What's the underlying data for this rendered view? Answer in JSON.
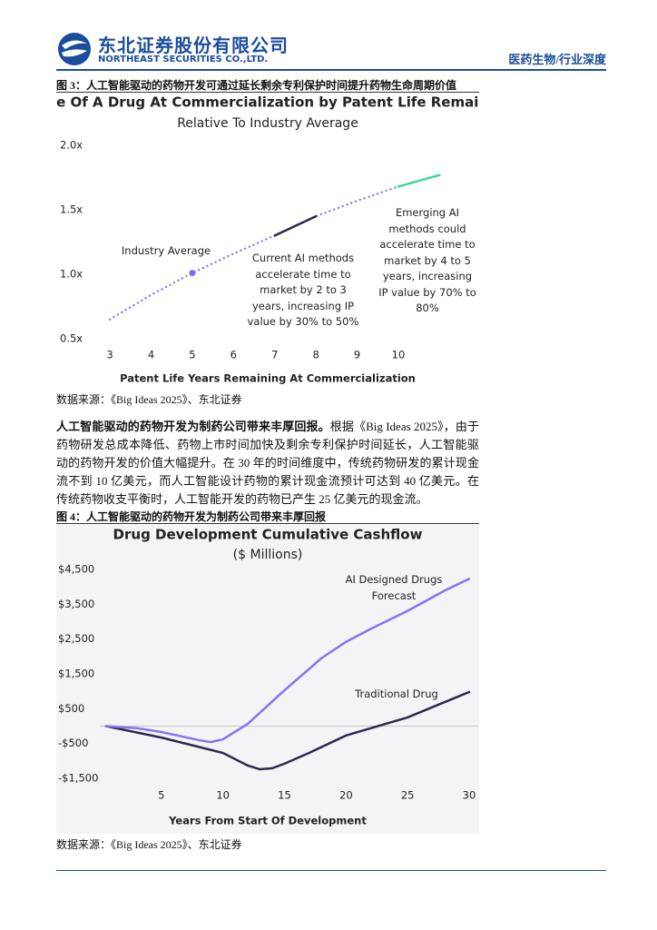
{
  "header": {
    "company": "东北证券股份有限公司",
    "company_en": "NORTHEAST SECURITIES CO.,LTD.",
    "section": "医药生物/行业深度"
  },
  "figures": [
    {
      "caption": "图 3：人工智能驱动的药物开发可通过延长剩余专利保护时间提升药物生命周期价值",
      "source": "数据来源：《Big Ideas 2025》、东北证券"
    },
    {
      "caption": "图 4：人工智能驱动的药物开发为制药公司带来丰厚回报",
      "source": "数据来源：《Big Ideas 2025》、东北证券"
    }
  ],
  "paragraph": {
    "lead": "人工智能驱动的药物开发为制药公司带来丰厚回报。",
    "text": "根据《Big Ideas 2025》，由于药物研发总成本降低、药物上市时间加快及剩余专利保护时间延长，人工智能驱动的药物开发的价值大幅提升。在 30 年的时间维度中，传统药物研发的累计现金流不到 10 亿美元，而人工智能设计药物的累计现金流预计可达到 40 亿美元。在传统药物收支平衡时，人工智能开发的药物已产生 25 亿美元的现金流。"
  },
  "chart_data": [
    {
      "type": "line",
      "title": "Value Of A Drug At Commercialization by Patent Life Remaining",
      "subtitle": "Relative To Industry Average",
      "x_label": "Patent Life Years Remaining At Commercialization",
      "xlim": [
        2.8,
        11.2
      ],
      "xticks": [
        3,
        4,
        5,
        6,
        7,
        8,
        9,
        10
      ],
      "ylim": [
        0.5,
        2.0
      ],
      "yticks": [
        {
          "value": 0.5,
          "label": "0.5x"
        },
        {
          "value": 1.0,
          "label": "1.0x"
        },
        {
          "value": 1.5,
          "label": "1.5x"
        },
        {
          "value": 2.0,
          "label": "2.0x"
        }
      ],
      "series": [
        {
          "color": "#7b6cf2",
          "dash": "dotted",
          "x": [
            3,
            4,
            5,
            6,
            7,
            8,
            9,
            10
          ],
          "values": [
            0.65,
            0.84,
            1.01,
            1.16,
            1.3,
            1.45,
            1.57,
            1.68
          ]
        },
        {
          "color": "#2b2a4a",
          "x": [
            7,
            8
          ],
          "values": [
            1.3,
            1.45
          ]
        },
        {
          "color": "#3fd69a",
          "x": [
            10,
            11
          ],
          "values": [
            1.68,
            1.77
          ]
        }
      ],
      "marker": {
        "x": 5,
        "value": 1.01,
        "color": "#7b6cf2"
      },
      "annotations": [
        "Industry Average",
        "Current AI methods accelerate time to market by 2 to 3 years, increasing IP value by 30% to 50%",
        "Emerging AI methods could accelerate time to market by 4 to 5 years, increasing IP value by 70% to 80%"
      ]
    },
    {
      "type": "line",
      "title": "Drug Development Cumulative Cashflow",
      "subtitle": "($ Millions)",
      "x_label": "Years From Start Of Development",
      "xlim": [
        0,
        30
      ],
      "xticks": [
        5,
        10,
        15,
        20,
        25,
        30
      ],
      "ylim": [
        -1500,
        4500
      ],
      "yticks": [
        {
          "value": -1500,
          "label": "-$1,500"
        },
        {
          "value": -500,
          "label": "-$500"
        },
        {
          "value": 500,
          "label": "$500"
        },
        {
          "value": 1500,
          "label": "$1,500"
        },
        {
          "value": 2500,
          "label": "$2,500"
        },
        {
          "value": 3500,
          "label": "$3,500"
        },
        {
          "value": 4500,
          "label": "$4,500"
        }
      ],
      "zero_line": true,
      "series": [
        {
          "color": "#2b2a4a",
          "x": [
            0.5,
            5,
            10,
            12,
            13,
            14,
            15,
            17,
            20,
            25,
            30
          ],
          "values": [
            0,
            -330,
            -770,
            -1130,
            -1240,
            -1210,
            -1080,
            -770,
            -270,
            250,
            980
          ]
        },
        {
          "color": "#8a73f0",
          "x": [
            0.5,
            3,
            5,
            8,
            9,
            10,
            12,
            15,
            18,
            20,
            22,
            25,
            28,
            30
          ],
          "values": [
            0,
            -60,
            -170,
            -400,
            -460,
            -380,
            60,
            1030,
            1950,
            2420,
            2790,
            3310,
            3890,
            4230
          ]
        }
      ],
      "annotations": [
        "AI Designed Drugs Forecast",
        "Traditional Drug"
      ]
    }
  ]
}
